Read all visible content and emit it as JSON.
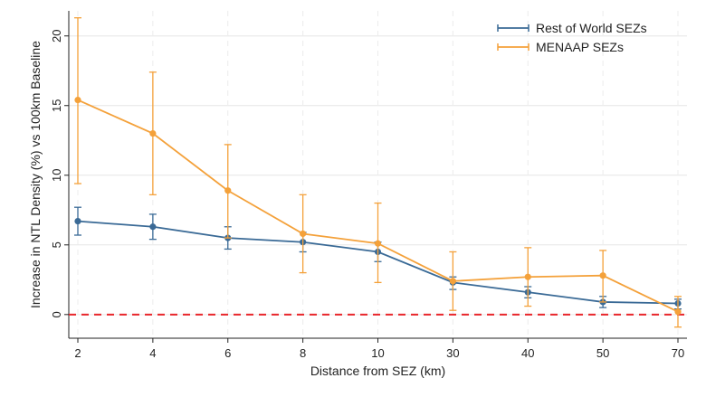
{
  "chart_data": {
    "type": "line",
    "title": "",
    "xlabel": "Distance from SEZ (km)",
    "ylabel": "Increase in NTL Density (%) vs 100km Baseline",
    "categories": [
      "2",
      "4",
      "6",
      "8",
      "10",
      "30",
      "40",
      "50",
      "70"
    ],
    "ylim": [
      -1.7,
      21.8
    ],
    "yticks": [
      0,
      5,
      10,
      15,
      20
    ],
    "ytick_labels": [
      "0",
      "5",
      "10",
      "15",
      "20"
    ],
    "grid": true,
    "legend_position": "top-right",
    "reference_line": {
      "value": 0,
      "color": "#e8262b",
      "style": "dashed"
    },
    "series": [
      {
        "name": "Rest of World SEZs",
        "color": "#3a6a96",
        "values": [
          6.7,
          6.3,
          5.5,
          5.2,
          4.5,
          2.3,
          1.6,
          0.9,
          0.8
        ],
        "ci_low": [
          5.7,
          5.4,
          4.7,
          4.5,
          3.8,
          1.8,
          1.2,
          0.5,
          0.4
        ],
        "ci_high": [
          7.7,
          7.2,
          6.3,
          5.9,
          5.2,
          2.7,
          2.0,
          1.3,
          1.1
        ]
      },
      {
        "name": "MENAAP SEZs",
        "color": "#f4a13a",
        "values": [
          15.4,
          13.0,
          8.9,
          5.8,
          5.1,
          2.4,
          2.7,
          2.8,
          0.2
        ],
        "ci_low": [
          9.4,
          8.6,
          5.5,
          3.0,
          2.3,
          0.3,
          0.6,
          0.9,
          -0.9
        ],
        "ci_high": [
          21.3,
          17.4,
          12.2,
          8.6,
          8.0,
          4.5,
          4.8,
          4.6,
          1.3
        ]
      }
    ]
  }
}
